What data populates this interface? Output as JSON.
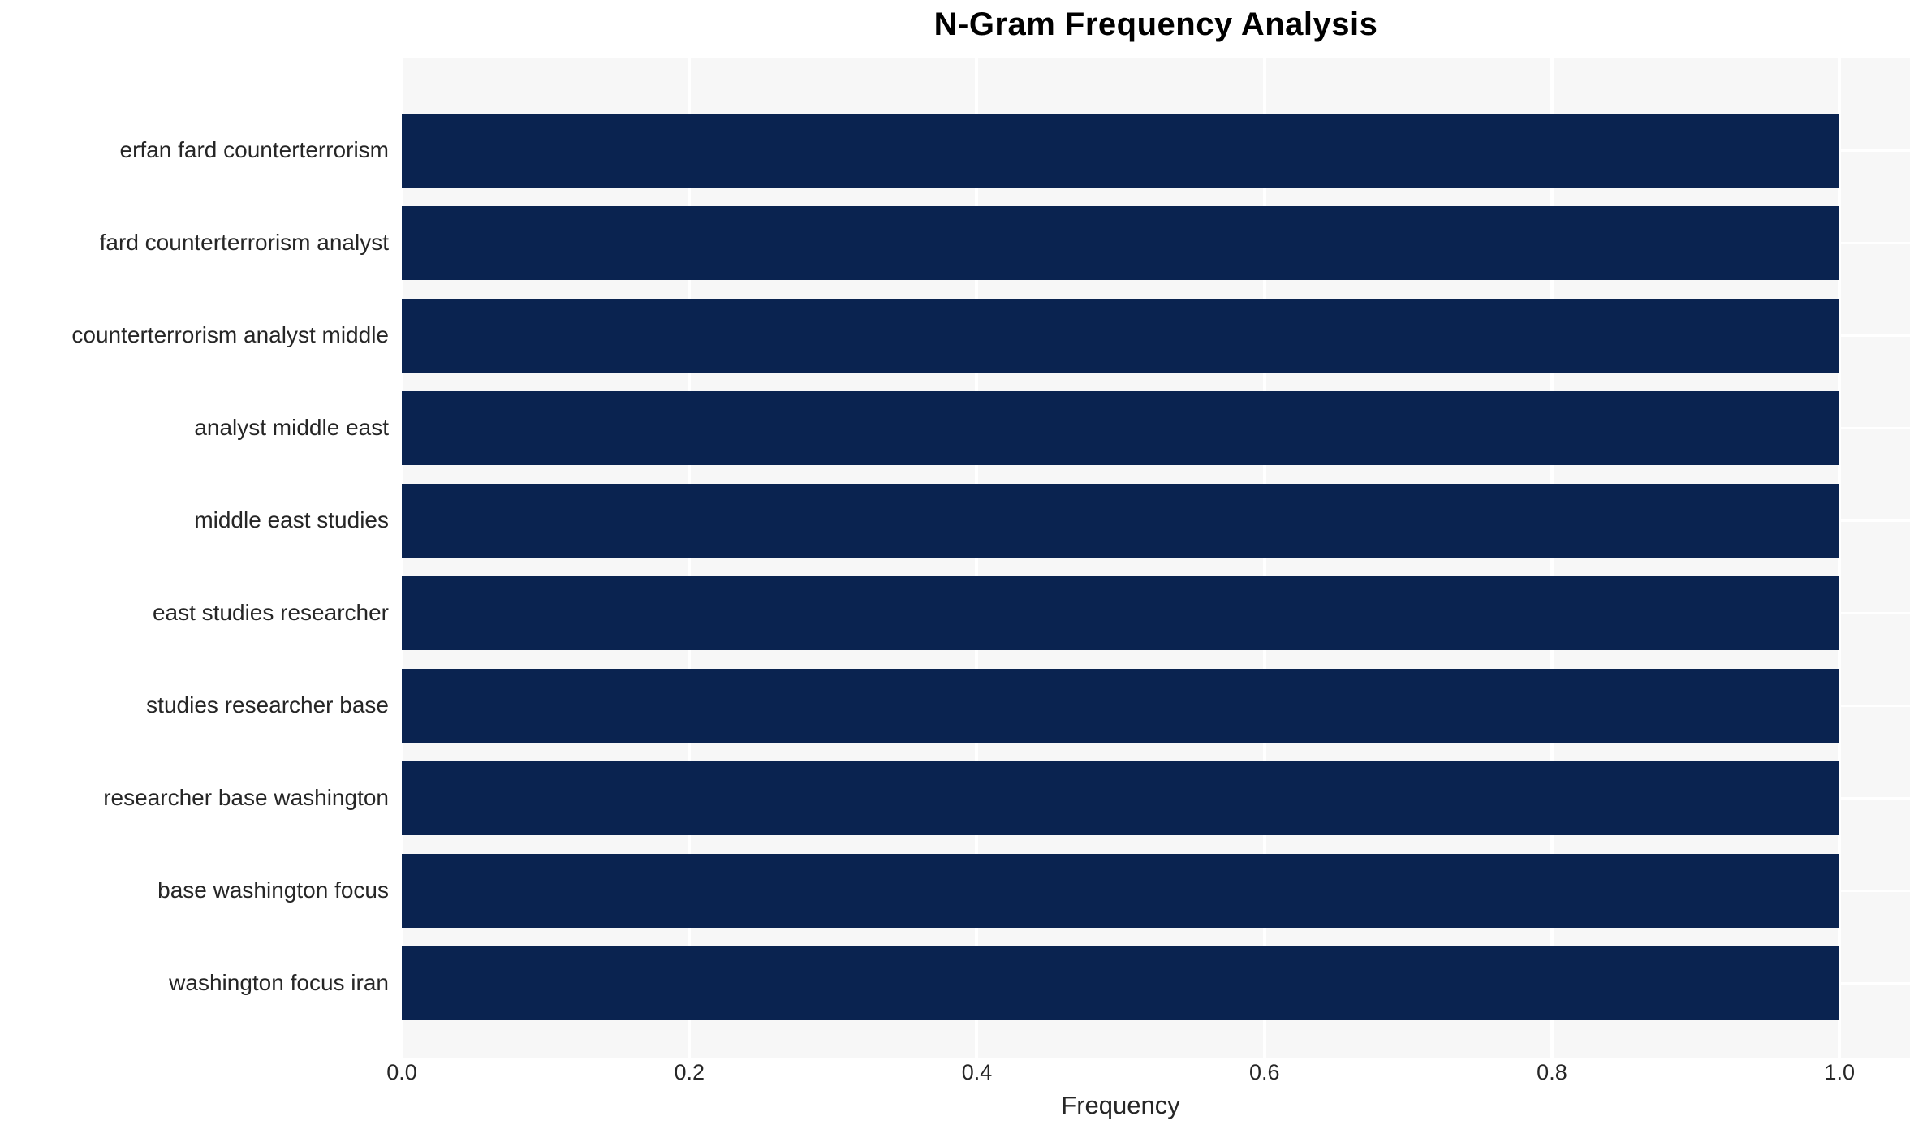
{
  "chart_data": {
    "type": "bar",
    "orientation": "horizontal",
    "title": "N-Gram Frequency Analysis",
    "xlabel": "Frequency",
    "ylabel": "",
    "categories": [
      "erfan fard counterterrorism",
      "fard counterterrorism analyst",
      "counterterrorism analyst middle",
      "analyst middle east",
      "middle east studies",
      "east studies researcher",
      "studies researcher base",
      "researcher base washington",
      "base washington focus",
      "washington focus iran"
    ],
    "values": [
      1.0,
      1.0,
      1.0,
      1.0,
      1.0,
      1.0,
      1.0,
      1.0,
      1.0,
      1.0
    ],
    "xlim": [
      0,
      1.049
    ],
    "xticks": {
      "values": [
        0.0,
        0.2,
        0.4,
        0.6,
        0.8,
        1.0
      ],
      "labels": [
        "0.0",
        "0.2",
        "0.4",
        "0.6",
        "0.8",
        "1.0"
      ]
    },
    "grid": "on",
    "legend": "none",
    "colors": {
      "bar": "#0a2350",
      "plot_background": "#f7f7f7",
      "gridline": "#ffffff",
      "text": "#262626",
      "title_text": "#000000"
    }
  }
}
